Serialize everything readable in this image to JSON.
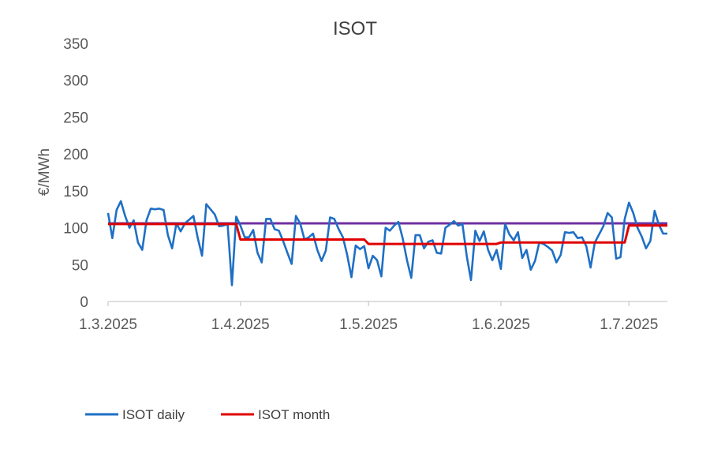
{
  "chart_data": {
    "type": "line",
    "title": "ISOT",
    "ylabel": "€/MWh",
    "xlabel": "",
    "ylim": [
      0,
      350
    ],
    "yticks": [
      0,
      50,
      100,
      150,
      200,
      250,
      300,
      350
    ],
    "ytick_labels": [
      "0",
      "50",
      "100",
      "150",
      "200",
      "250",
      "300",
      "350"
    ],
    "xlim": [
      "2025-03-01",
      "2025-07-10"
    ],
    "xticks": [
      "2025-03-01",
      "2025-04-01",
      "2025-05-01",
      "2025-06-01",
      "2025-07-01"
    ],
    "xtick_labels": [
      "1.3.2025",
      "1.4.2025",
      "1.5.2025",
      "1.6.2025",
      "1.7.2025"
    ],
    "grid": false,
    "legend": "bottom",
    "series": [
      {
        "name": "ISOT daily",
        "color": "#1F6FC5",
        "x": [
          "2025-03-01",
          "2025-03-02",
          "2025-03-03",
          "2025-03-04",
          "2025-03-05",
          "2025-03-06",
          "2025-03-07",
          "2025-03-08",
          "2025-03-09",
          "2025-03-10",
          "2025-03-11",
          "2025-03-12",
          "2025-03-13",
          "2025-03-14",
          "2025-03-15",
          "2025-03-16",
          "2025-03-17",
          "2025-03-18",
          "2025-03-19",
          "2025-03-20",
          "2025-03-21",
          "2025-03-22",
          "2025-03-23",
          "2025-03-24",
          "2025-03-25",
          "2025-03-26",
          "2025-03-27",
          "2025-03-28",
          "2025-03-29",
          "2025-03-30",
          "2025-03-31",
          "2025-04-01",
          "2025-04-02",
          "2025-04-03",
          "2025-04-04",
          "2025-04-05",
          "2025-04-06",
          "2025-04-07",
          "2025-04-08",
          "2025-04-09",
          "2025-04-10",
          "2025-04-11",
          "2025-04-12",
          "2025-04-13",
          "2025-04-14",
          "2025-04-15",
          "2025-04-16",
          "2025-04-17",
          "2025-04-18",
          "2025-04-19",
          "2025-04-20",
          "2025-04-21",
          "2025-04-22",
          "2025-04-23",
          "2025-04-24",
          "2025-04-25",
          "2025-04-26",
          "2025-04-27",
          "2025-04-28",
          "2025-04-29",
          "2025-04-30",
          "2025-05-01",
          "2025-05-02",
          "2025-05-03",
          "2025-05-04",
          "2025-05-05",
          "2025-05-06",
          "2025-05-07",
          "2025-05-08",
          "2025-05-09",
          "2025-05-10",
          "2025-05-11",
          "2025-05-12",
          "2025-05-13",
          "2025-05-14",
          "2025-05-15",
          "2025-05-16",
          "2025-05-17",
          "2025-05-18",
          "2025-05-19",
          "2025-05-20",
          "2025-05-21",
          "2025-05-22",
          "2025-05-23",
          "2025-05-24",
          "2025-05-25",
          "2025-05-26",
          "2025-05-27",
          "2025-05-28",
          "2025-05-29",
          "2025-05-30",
          "2025-05-31",
          "2025-06-01",
          "2025-06-02",
          "2025-06-03",
          "2025-06-04",
          "2025-06-05",
          "2025-06-06",
          "2025-06-07",
          "2025-06-08",
          "2025-06-09",
          "2025-06-10",
          "2025-06-11",
          "2025-06-12",
          "2025-06-13",
          "2025-06-14",
          "2025-06-15",
          "2025-06-16",
          "2025-06-17",
          "2025-06-18",
          "2025-06-19",
          "2025-06-20",
          "2025-06-21",
          "2025-06-22",
          "2025-06-23",
          "2025-06-24",
          "2025-06-25",
          "2025-06-26",
          "2025-06-27",
          "2025-06-28",
          "2025-06-29",
          "2025-06-30",
          "2025-07-01",
          "2025-07-02",
          "2025-07-03",
          "2025-07-04",
          "2025-07-05",
          "2025-07-06",
          "2025-07-07",
          "2025-07-08",
          "2025-07-09",
          "2025-07-10"
        ],
        "values": [
          120,
          86,
          124,
          136,
          116,
          100,
          110,
          80,
          70,
          110,
          126,
          125,
          126,
          124,
          90,
          72,
          106,
          95,
          106,
          111,
          116,
          86,
          62,
          132,
          125,
          118,
          102,
          103,
          105,
          22,
          115,
          103,
          87,
          87,
          97,
          66,
          53,
          112,
          112,
          98,
          96,
          82,
          66,
          51,
          116,
          106,
          84,
          87,
          92,
          70,
          55,
          69,
          114,
          112,
          98,
          87,
          63,
          33,
          76,
          71,
          75,
          45,
          62,
          56,
          34,
          100,
          96,
          103,
          108,
          86,
          56,
          32,
          90,
          90,
          72,
          81,
          83,
          66,
          65,
          100,
          104,
          109,
          103,
          105,
          62,
          29,
          96,
          82,
          95,
          70,
          56,
          70,
          44,
          105,
          91,
          83,
          94,
          59,
          70,
          43,
          55,
          80,
          78,
          74,
          69,
          53,
          63,
          94,
          93,
          94,
          86,
          87,
          75,
          46,
          80,
          91,
          102,
          120,
          114,
          58,
          60,
          112,
          134,
          120,
          100,
          88,
          72,
          82,
          123,
          104,
          92,
          92
        ]
      },
      {
        "name": "ISOT month",
        "color": "#E00000",
        "x": [
          "2025-03-01",
          "2025-03-31",
          "2025-04-01",
          "2025-04-30",
          "2025-05-01",
          "2025-05-31",
          "2025-06-01",
          "2025-06-30",
          "2025-07-01",
          "2025-07-10"
        ],
        "values": [
          105,
          105,
          84,
          84,
          78,
          78,
          80,
          80,
          103,
          103
        ]
      },
      {
        "color": "#7030A0",
        "x": [
          "2025-03-01",
          "2025-07-10"
        ],
        "values": [
          106,
          106
        ]
      }
    ]
  }
}
